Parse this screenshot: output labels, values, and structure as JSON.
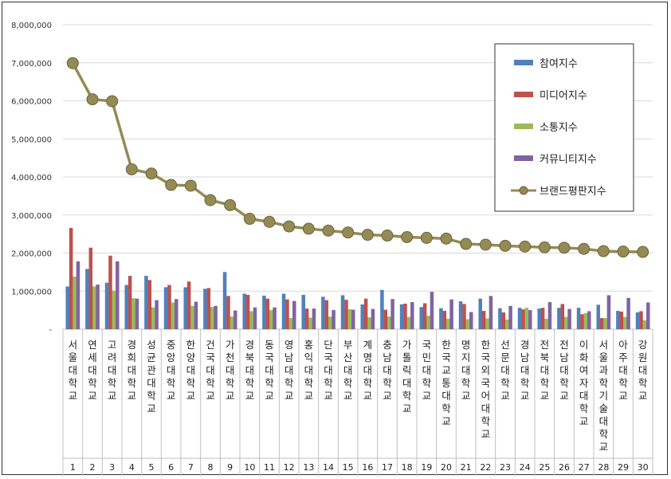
{
  "chart_data": {
    "type": "bar",
    "categories": [
      "서울대학교",
      "연세대학교",
      "고려대학교",
      "경희대학교",
      "성균관대학교",
      "중앙대학교",
      "한양대학교",
      "건국대학교",
      "가천대학교",
      "경북대학교",
      "동국대학교",
      "영남대학교",
      "홍익대학교",
      "단국대학교",
      "부산대학교",
      "계명대학교",
      "충남대학교",
      "가톨릭대학교",
      "국민대학교",
      "한국교통대학교",
      "명지대학교",
      "한국외국어대학교",
      "선문대학교",
      "경남대학교",
      "전북대학교",
      "전남대학교",
      "이화여자대학교",
      "서울과학기술대학교",
      "아주대학교",
      "강원대학교"
    ],
    "ranks": [
      "1",
      "2",
      "3",
      "4",
      "5",
      "6",
      "7",
      "8",
      "9",
      "10",
      "11",
      "12",
      "13",
      "14",
      "15",
      "16",
      "17",
      "18",
      "19",
      "20",
      "21",
      "22",
      "23",
      "24",
      "25",
      "26",
      "27",
      "28",
      "29",
      "30"
    ],
    "ylim": [
      0,
      8000000
    ],
    "yticks": [
      0,
      1000000,
      2000000,
      3000000,
      4000000,
      5000000,
      6000000,
      7000000,
      8000000
    ],
    "ytick_labels": [
      "-",
      "1,000,000",
      "2,000,000",
      "3,000,000",
      "4,000,000",
      "5,000,000",
      "6,000,000",
      "7,000,000",
      "8,000,000"
    ],
    "grid": true,
    "legend_position": "top-right",
    "series": [
      {
        "name": "참여지수",
        "kind": "bar",
        "color": "#4f81bd",
        "values": [
          1120000,
          1580000,
          1220000,
          1160000,
          1400000,
          1100000,
          1100000,
          1060000,
          1500000,
          930000,
          880000,
          930000,
          900000,
          850000,
          890000,
          650000,
          1030000,
          650000,
          580000,
          550000,
          730000,
          800000,
          550000,
          560000,
          540000,
          560000,
          560000,
          640000,
          480000,
          440000
        ]
      },
      {
        "name": "미디어지수",
        "kind": "bar",
        "color": "#c0504d",
        "values": [
          2660000,
          2140000,
          1930000,
          1400000,
          1290000,
          1160000,
          1250000,
          1080000,
          870000,
          900000,
          800000,
          780000,
          540000,
          760000,
          770000,
          800000,
          510000,
          670000,
          680000,
          480000,
          660000,
          480000,
          440000,
          520000,
          560000,
          660000,
          390000,
          290000,
          460000,
          470000
        ]
      },
      {
        "name": "소통지수",
        "kind": "bar",
        "color": "#9bbb59",
        "values": [
          1380000,
          1120000,
          1010000,
          810000,
          570000,
          700000,
          610000,
          580000,
          330000,
          470000,
          500000,
          290000,
          300000,
          330000,
          520000,
          310000,
          330000,
          320000,
          350000,
          270000,
          260000,
          280000,
          250000,
          560000,
          270000,
          320000,
          420000,
          290000,
          320000,
          230000
        ]
      },
      {
        "name": "커뮤니티지수",
        "kind": "bar",
        "color": "#8064a2",
        "values": [
          1780000,
          1170000,
          1780000,
          800000,
          760000,
          790000,
          720000,
          610000,
          490000,
          570000,
          570000,
          740000,
          540000,
          500000,
          510000,
          530000,
          790000,
          710000,
          980000,
          780000,
          450000,
          870000,
          610000,
          500000,
          710000,
          530000,
          470000,
          890000,
          820000,
          700000
        ]
      },
      {
        "name": "브랜드평판지수",
        "kind": "line",
        "color": "#948a54",
        "values": [
          6990000,
          6040000,
          5990000,
          4200000,
          4090000,
          3790000,
          3770000,
          3390000,
          3260000,
          2900000,
          2820000,
          2700000,
          2640000,
          2590000,
          2540000,
          2480000,
          2460000,
          2420000,
          2400000,
          2380000,
          2240000,
          2220000,
          2190000,
          2170000,
          2150000,
          2140000,
          2110000,
          2050000,
          2040000,
          2030000
        ]
      }
    ]
  }
}
